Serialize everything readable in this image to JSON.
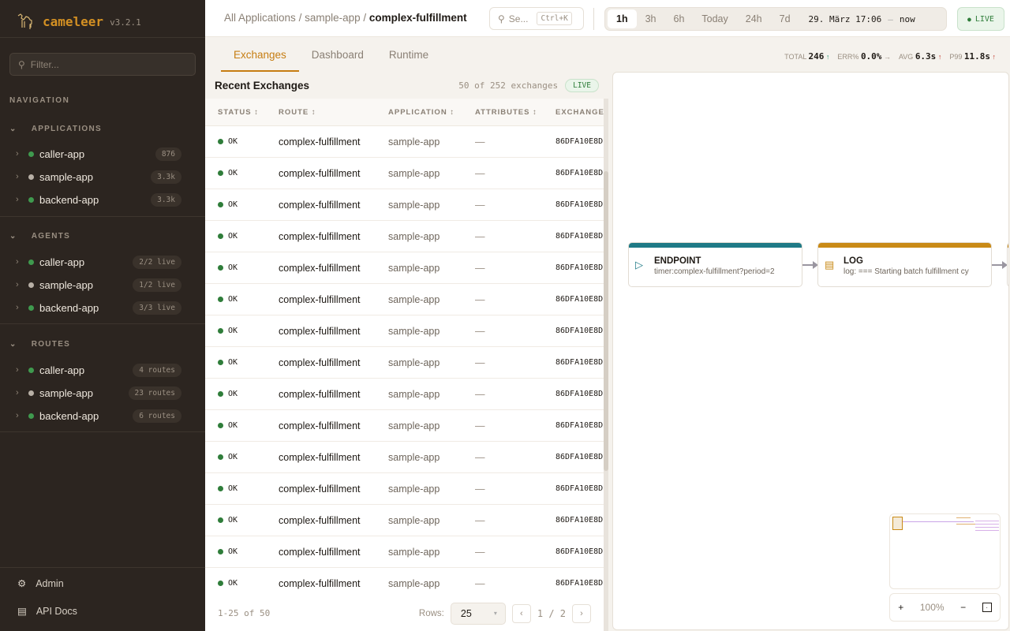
{
  "app": {
    "name": "cameleer",
    "version": "v3.2.1"
  },
  "sidebar": {
    "filter_placeholder": "Filter...",
    "navigation_label": "NAVIGATION",
    "groups": [
      {
        "label": "APPLICATIONS",
        "items": [
          {
            "label": "caller-app",
            "badge": "876",
            "status": "green"
          },
          {
            "label": "sample-app",
            "badge": "3.3k",
            "status": "gray"
          },
          {
            "label": "backend-app",
            "badge": "3.3k",
            "status": "green"
          }
        ]
      },
      {
        "label": "AGENTS",
        "items": [
          {
            "label": "caller-app",
            "badge": "2/2 live",
            "status": "green"
          },
          {
            "label": "sample-app",
            "badge": "1/2 live",
            "status": "gray"
          },
          {
            "label": "backend-app",
            "badge": "3/3 live",
            "status": "green"
          }
        ]
      },
      {
        "label": "ROUTES",
        "items": [
          {
            "label": "caller-app",
            "badge": "4 routes",
            "status": "green"
          },
          {
            "label": "sample-app",
            "badge": "23 routes",
            "status": "gray"
          },
          {
            "label": "backend-app",
            "badge": "6 routes",
            "status": "green"
          }
        ]
      }
    ],
    "footer": [
      {
        "label": "Admin",
        "icon": "gear-icon"
      },
      {
        "label": "API Docs",
        "icon": "document-icon"
      }
    ]
  },
  "header": {
    "breadcrumb": [
      "All Applications",
      "sample-app",
      "complex-fulfillment"
    ],
    "search_placeholder": "Se...",
    "search_shortcut": "Ctrl+K",
    "time_ranges": [
      "1h",
      "3h",
      "6h",
      "Today",
      "24h",
      "7d"
    ],
    "active_range": "1h",
    "range_start": "29. März 17:06",
    "range_sep": "—",
    "range_end": "now",
    "live_label": "LIVE"
  },
  "tabs": [
    "Exchanges",
    "Dashboard",
    "Runtime"
  ],
  "active_tab": "Exchanges",
  "kpis": [
    {
      "label": "TOTAL",
      "value": "246",
      "trend": "↑"
    },
    {
      "label": "ERR%",
      "value": "0.0%",
      "trend": "→"
    },
    {
      "label": "AVG",
      "value": "6.3s",
      "trend": "↑"
    },
    {
      "label": "P99",
      "value": "11.8s",
      "trend": "↑"
    }
  ],
  "exchanges": {
    "title": "Recent Exchanges",
    "count": "50 of 252 exchanges",
    "live": "LIVE",
    "columns": [
      "STATUS ↕",
      "ROUTE ↕",
      "APPLICATION ↕",
      "ATTRIBUTES ↕",
      "EXCHANGE"
    ],
    "rows": [
      {
        "status": "OK",
        "route": "complex-fulfillment",
        "application": "sample-app",
        "attributes": "—",
        "exchange": "86DFA10E8D"
      },
      {
        "status": "OK",
        "route": "complex-fulfillment",
        "application": "sample-app",
        "attributes": "—",
        "exchange": "86DFA10E8D"
      },
      {
        "status": "OK",
        "route": "complex-fulfillment",
        "application": "sample-app",
        "attributes": "—",
        "exchange": "86DFA10E8D"
      },
      {
        "status": "OK",
        "route": "complex-fulfillment",
        "application": "sample-app",
        "attributes": "—",
        "exchange": "86DFA10E8D"
      },
      {
        "status": "OK",
        "route": "complex-fulfillment",
        "application": "sample-app",
        "attributes": "—",
        "exchange": "86DFA10E8D"
      },
      {
        "status": "OK",
        "route": "complex-fulfillment",
        "application": "sample-app",
        "attributes": "—",
        "exchange": "86DFA10E8D"
      },
      {
        "status": "OK",
        "route": "complex-fulfillment",
        "application": "sample-app",
        "attributes": "—",
        "exchange": "86DFA10E8D"
      },
      {
        "status": "OK",
        "route": "complex-fulfillment",
        "application": "sample-app",
        "attributes": "—",
        "exchange": "86DFA10E8D"
      },
      {
        "status": "OK",
        "route": "complex-fulfillment",
        "application": "sample-app",
        "attributes": "—",
        "exchange": "86DFA10E8D"
      },
      {
        "status": "OK",
        "route": "complex-fulfillment",
        "application": "sample-app",
        "attributes": "—",
        "exchange": "86DFA10E8D"
      },
      {
        "status": "OK",
        "route": "complex-fulfillment",
        "application": "sample-app",
        "attributes": "—",
        "exchange": "86DFA10E8D"
      },
      {
        "status": "OK",
        "route": "complex-fulfillment",
        "application": "sample-app",
        "attributes": "—",
        "exchange": "86DFA10E8D"
      },
      {
        "status": "OK",
        "route": "complex-fulfillment",
        "application": "sample-app",
        "attributes": "—",
        "exchange": "86DFA10E8D"
      },
      {
        "status": "OK",
        "route": "complex-fulfillment",
        "application": "sample-app",
        "attributes": "—",
        "exchange": "86DFA10E8D"
      },
      {
        "status": "OK",
        "route": "complex-fulfillment",
        "application": "sample-app",
        "attributes": "—",
        "exchange": "86DFA10E8D"
      }
    ],
    "pager": {
      "range": "1-25 of 50",
      "rows_label": "Rows:",
      "rows_value": "25",
      "page": "1 / 2",
      "prev": "‹",
      "next": "›"
    }
  },
  "diagram": {
    "nodes": [
      {
        "type": "ENDPOINT",
        "detail": "timer:complex-fulfillment?period=2",
        "color": "#1f7a86"
      },
      {
        "type": "LOG",
        "detail": "log: === Starting batch fulfillment cy",
        "color": "#c98a16"
      }
    ],
    "zoom": "100%",
    "zoom_in": "+",
    "zoom_out": "−"
  },
  "colors": {
    "accent": "#c67d12",
    "ok": "#2f7d3a",
    "sidebar": "#2c2520"
  }
}
